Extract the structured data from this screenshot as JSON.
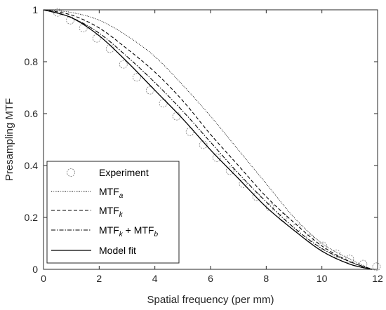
{
  "chart_data": {
    "type": "line",
    "xlabel": "Spatial frequency (per mm)",
    "ylabel": "Presampling MTF",
    "xlim": [
      0,
      12
    ],
    "ylim": [
      0,
      1
    ],
    "x_ticks": [
      0,
      2,
      4,
      6,
      8,
      10,
      12
    ],
    "y_ticks": [
      0,
      0.2,
      0.4,
      0.6,
      0.8,
      1
    ],
    "x_tick_labels": [
      "0",
      "2",
      "4",
      "6",
      "8",
      "10",
      "12"
    ],
    "y_tick_labels": [
      "0",
      "0.2",
      "0.4",
      "0.6",
      "0.8",
      "1"
    ],
    "grid": false,
    "legend_position": "bottom-left",
    "legend": [
      {
        "key": "experiment",
        "text": "Experiment",
        "sub": "",
        "extra": ""
      },
      {
        "key": "mtf_a",
        "text": "MTF",
        "sub": "a",
        "extra": ""
      },
      {
        "key": "mtf_k",
        "text": "MTF",
        "sub": "k",
        "extra": ""
      },
      {
        "key": "mtf_kb",
        "text": "MTF",
        "sub": "k",
        "extra": " + MTF",
        "sub2": "b"
      },
      {
        "key": "model_fit",
        "text": "Model fit",
        "sub": "",
        "extra": ""
      }
    ],
    "series": [
      {
        "key": "experiment",
        "style": "markers",
        "x": [
          0.5,
          0.96,
          1.43,
          1.91,
          2.39,
          2.87,
          3.35,
          3.83,
          4.3,
          4.78,
          5.26,
          5.74,
          6.22,
          6.7,
          7.17,
          7.65,
          8.13,
          8.61,
          9.09,
          9.57,
          10.04,
          10.52,
          11.0,
          11.48,
          11.96
        ],
        "y": [
          0.99,
          0.96,
          0.93,
          0.89,
          0.85,
          0.79,
          0.74,
          0.69,
          0.64,
          0.59,
          0.53,
          0.48,
          0.43,
          0.38,
          0.33,
          0.28,
          0.24,
          0.2,
          0.16,
          0.12,
          0.09,
          0.06,
          0.04,
          0.02,
          0.01
        ]
      },
      {
        "key": "mtf_a",
        "style": "dotted",
        "x": [
          0,
          1,
          2,
          3,
          4,
          5,
          6,
          7,
          8,
          9,
          10,
          11,
          11.8
        ],
        "y": [
          1.0,
          0.99,
          0.96,
          0.9,
          0.82,
          0.71,
          0.59,
          0.46,
          0.33,
          0.2,
          0.1,
          0.04,
          0.0
        ]
      },
      {
        "key": "mtf_k",
        "style": "dashed",
        "x": [
          0,
          1,
          2,
          3,
          4,
          5,
          6,
          7,
          8,
          9,
          10,
          11,
          11.8
        ],
        "y": [
          1.0,
          0.98,
          0.93,
          0.85,
          0.76,
          0.65,
          0.52,
          0.4,
          0.28,
          0.18,
          0.09,
          0.03,
          0.0
        ]
      },
      {
        "key": "mtf_kb",
        "style": "dashdot",
        "x": [
          0,
          1,
          2,
          3,
          4,
          5,
          6,
          7,
          8,
          9,
          10,
          11,
          11.8
        ],
        "y": [
          1.0,
          0.97,
          0.91,
          0.82,
          0.72,
          0.61,
          0.49,
          0.37,
          0.26,
          0.16,
          0.08,
          0.03,
          0.0
        ]
      },
      {
        "key": "model_fit",
        "style": "solid",
        "x": [
          0,
          1,
          2,
          3,
          4,
          5,
          6,
          7,
          8,
          9,
          10,
          11,
          11.8
        ],
        "y": [
          1.0,
          0.97,
          0.9,
          0.8,
          0.69,
          0.58,
          0.46,
          0.35,
          0.24,
          0.15,
          0.07,
          0.02,
          0.0
        ]
      }
    ]
  }
}
